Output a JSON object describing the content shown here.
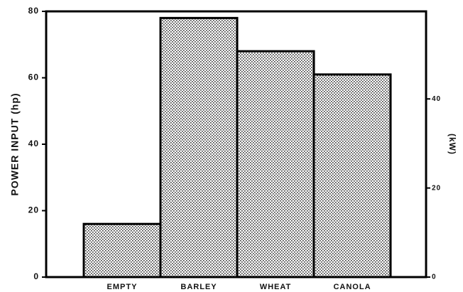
{
  "chart_data": {
    "type": "bar",
    "categories": [
      "EMPTY",
      "BARLEY",
      "WHEAT",
      "CANOLA"
    ],
    "values": [
      16,
      78,
      68,
      61
    ],
    "color": "#bdbdbd",
    "ylabel": "POWER INPUT (hp)",
    "y2label": "(kW)",
    "ylim": [
      0,
      80
    ],
    "yticks": [
      0,
      20,
      40,
      60,
      80
    ],
    "y2lim": [
      0,
      59.66
    ],
    "y2ticks": [
      0,
      20,
      40
    ],
    "grid": false
  }
}
